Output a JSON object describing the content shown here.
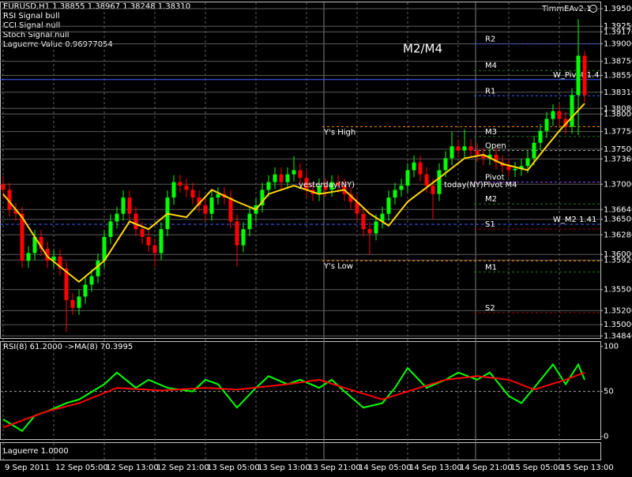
{
  "header": {
    "symbol_line": "EURUSD,H1  1.38855 1.38967 1.38248 1.38310",
    "lines": [
      "RSI Signal bull",
      "CCI Signal null",
      "Stoch Signal null",
      "Laguerre Value 0.96977054"
    ],
    "expert": "TimmEAv2.1"
  },
  "chart_data": [
    {
      "type": "candlestick",
      "categories": [
        "9 Sep 2011",
        null,
        null,
        null,
        null,
        null,
        null,
        null,
        "12 Sep 05:00",
        null,
        null,
        null,
        null,
        null,
        null,
        null,
        "12 Sep 13:00",
        null,
        null,
        null,
        null,
        null,
        null,
        null,
        "12 Sep 21:00",
        null,
        null,
        null,
        null,
        null,
        null,
        null,
        "13 Sep 05:00",
        null,
        null,
        null,
        null,
        null,
        null,
        null,
        "13 Sep 13:00",
        null,
        null,
        null,
        null,
        null,
        null,
        null,
        "13 Sep 21:00",
        null,
        null,
        null,
        null,
        null,
        null,
        null,
        "14 Sep 05:00",
        null,
        null,
        null,
        null,
        null,
        null,
        null,
        "14 Sep 13:00",
        null,
        null,
        null,
        null,
        null,
        null,
        null,
        "14 Sep 21:00",
        null,
        null,
        null,
        null,
        null,
        null,
        null,
        "15 Sep 05:00",
        null,
        null,
        null,
        null,
        null,
        null,
        null,
        "15 Sep 13:00",
        null,
        null,
        null,
        null
      ],
      "open": [
        1.37,
        1.3692,
        1.3664,
        1.3658,
        1.3591,
        1.3602,
        1.3625,
        1.3608,
        1.3591,
        1.3597,
        1.358,
        1.3535,
        1.3524,
        1.354,
        1.3557,
        1.3569,
        1.3591,
        1.3625,
        1.3647,
        1.3658,
        1.3681,
        1.3658,
        1.3636,
        1.3625,
        1.3613,
        1.3602,
        1.3636,
        1.3681,
        1.3703,
        1.3698,
        1.3692,
        1.3681,
        1.367,
        1.3658,
        1.3681,
        1.3686,
        1.3681,
        1.3647,
        1.3613,
        1.3636,
        1.3658,
        1.367,
        1.3692,
        1.3703,
        1.3714,
        1.3703,
        1.3714,
        1.372,
        1.3709,
        1.3692,
        1.3686,
        1.3698,
        1.3692,
        1.3703,
        1.3698,
        1.3686,
        1.3675,
        1.3658,
        1.3636,
        1.363,
        1.3647,
        1.3658,
        1.3681,
        1.3692,
        1.3698,
        1.372,
        1.3731,
        1.3714,
        1.3698,
        1.3686,
        1.372,
        1.3737,
        1.3754,
        1.3748,
        1.3754,
        1.3748,
        1.3742,
        1.3737,
        1.3742,
        1.3731,
        1.3726,
        1.372,
        1.3722,
        1.3726,
        1.3737,
        1.3759,
        1.3776,
        1.3793,
        1.3804,
        1.3793,
        1.3782,
        1.3827,
        1.3883
      ],
      "high": [
        1.3712,
        1.3702,
        1.3674,
        1.3668,
        1.3612,
        1.3635,
        1.3635,
        1.3618,
        1.3607,
        1.3607,
        1.359,
        1.3545,
        1.355,
        1.3567,
        1.3579,
        1.3601,
        1.3635,
        1.3657,
        1.3668,
        1.3691,
        1.3691,
        1.3668,
        1.3646,
        1.3635,
        1.3623,
        1.3646,
        1.3691,
        1.3713,
        1.3713,
        1.3708,
        1.3702,
        1.3691,
        1.368,
        1.3691,
        1.3696,
        1.3696,
        1.3691,
        1.3657,
        1.3646,
        1.3668,
        1.368,
        1.3702,
        1.3713,
        1.3724,
        1.3724,
        1.3724,
        1.374,
        1.373,
        1.3719,
        1.3702,
        1.3708,
        1.3708,
        1.3713,
        1.3713,
        1.3708,
        1.3696,
        1.3685,
        1.3668,
        1.3646,
        1.3657,
        1.3668,
        1.3691,
        1.3702,
        1.3708,
        1.373,
        1.3741,
        1.3741,
        1.3724,
        1.3708,
        1.373,
        1.3747,
        1.3775,
        1.3764,
        1.3778,
        1.3764,
        1.3758,
        1.3752,
        1.3752,
        1.3752,
        1.3741,
        1.3736,
        1.3732,
        1.3736,
        1.3747,
        1.3769,
        1.3786,
        1.3803,
        1.3814,
        1.3814,
        1.3803,
        1.3837,
        1.3935,
        1.389
      ],
      "low": [
        1.368,
        1.3654,
        1.3648,
        1.3581,
        1.3581,
        1.3592,
        1.3598,
        1.3581,
        1.3581,
        1.357,
        1.349,
        1.3514,
        1.3514,
        1.353,
        1.3547,
        1.3559,
        1.3581,
        1.3615,
        1.3637,
        1.3648,
        1.3648,
        1.3626,
        1.3615,
        1.3603,
        1.3582,
        1.3592,
        1.3626,
        1.3671,
        1.3688,
        1.3682,
        1.3671,
        1.366,
        1.3648,
        1.3648,
        1.3671,
        1.3671,
        1.3637,
        1.3583,
        1.3603,
        1.3626,
        1.3648,
        1.366,
        1.3682,
        1.3693,
        1.3693,
        1.3693,
        1.3704,
        1.3699,
        1.3682,
        1.3676,
        1.3676,
        1.3682,
        1.3682,
        1.3688,
        1.3676,
        1.3665,
        1.3648,
        1.3626,
        1.36,
        1.362,
        1.3637,
        1.3648,
        1.3671,
        1.3682,
        1.3688,
        1.371,
        1.3704,
        1.3688,
        1.365,
        1.3676,
        1.371,
        1.3727,
        1.3738,
        1.3738,
        1.3738,
        1.3732,
        1.3727,
        1.3727,
        1.3721,
        1.3716,
        1.371,
        1.371,
        1.3712,
        1.3716,
        1.3727,
        1.3749,
        1.3766,
        1.3783,
        1.3783,
        1.3772,
        1.3772,
        1.377,
        1.3817
      ],
      "close": [
        1.3692,
        1.3664,
        1.3658,
        1.3591,
        1.3602,
        1.3625,
        1.3608,
        1.3591,
        1.3597,
        1.358,
        1.3535,
        1.3524,
        1.354,
        1.3557,
        1.3569,
        1.3591,
        1.3625,
        1.3647,
        1.3658,
        1.3681,
        1.3658,
        1.3636,
        1.3625,
        1.3613,
        1.3602,
        1.3636,
        1.3681,
        1.3703,
        1.3698,
        1.3692,
        1.3681,
        1.367,
        1.3658,
        1.3681,
        1.3686,
        1.3681,
        1.3647,
        1.3613,
        1.3636,
        1.3658,
        1.367,
        1.3692,
        1.3703,
        1.3714,
        1.3703,
        1.3714,
        1.372,
        1.3709,
        1.3692,
        1.3686,
        1.3698,
        1.3692,
        1.3703,
        1.3698,
        1.3686,
        1.3675,
        1.3658,
        1.3636,
        1.363,
        1.3647,
        1.3658,
        1.3681,
        1.3692,
        1.3698,
        1.372,
        1.3731,
        1.3714,
        1.3698,
        1.3686,
        1.372,
        1.3737,
        1.3754,
        1.3748,
        1.3754,
        1.3748,
        1.3742,
        1.3737,
        1.3742,
        1.3731,
        1.3726,
        1.372,
        1.3722,
        1.3726,
        1.3737,
        1.3759,
        1.3776,
        1.3793,
        1.3804,
        1.3793,
        1.3782,
        1.3827,
        1.3883,
        1.3827
      ],
      "up_color": "#00ff00",
      "down_color": "#ff0000",
      "overlay": {
        "color": "#ffd700",
        "x": [
          0,
          3,
          7,
          12,
          16,
          20,
          23,
          26,
          29,
          33,
          37,
          40,
          42,
          46,
          50,
          54,
          58,
          61,
          64,
          69,
          73,
          76,
          79,
          83,
          86,
          88,
          92
        ],
        "values": [
          1.3686,
          1.3653,
          1.3597,
          1.3561,
          1.3591,
          1.3647,
          1.3636,
          1.3658,
          1.3653,
          1.3692,
          1.3675,
          1.3664,
          1.3686,
          1.3698,
          1.3686,
          1.3692,
          1.3658,
          1.3641,
          1.3675,
          1.3709,
          1.3737,
          1.3742,
          1.3729,
          1.372,
          1.3754,
          1.3776,
          1.3815
        ]
      },
      "ylim": [
        1.3481,
        1.3959
      ],
      "yticks": [
        {
          "value": 1.395,
          "label": "1.39500"
        },
        {
          "value": 1.3925,
          "label": "1.39250"
        },
        {
          "value": 1.3917,
          "label": "1.39170"
        },
        {
          "value": 1.39,
          "label": "1.39000"
        },
        {
          "value": 1.3875,
          "label": "1.38750"
        },
        {
          "value": 1.3855,
          "label": "1.38550"
        },
        {
          "value": 1.3831,
          "label": "1.38310"
        },
        {
          "value": 1.3808,
          "label": "1.38080"
        },
        {
          "value": 1.38,
          "label": "1.38000"
        },
        {
          "value": 1.3775,
          "label": "1.37750"
        },
        {
          "value": 1.375,
          "label": "1.37500"
        },
        {
          "value": 1.3736,
          "label": "1.37360"
        },
        {
          "value": 1.37,
          "label": "1.37000"
        },
        {
          "value": 1.3664,
          "label": "1.36640"
        },
        {
          "value": 1.365,
          "label": "1.36500"
        },
        {
          "value": 1.3628,
          "label": "1.36280"
        },
        {
          "value": 1.36,
          "label": "1.36000"
        },
        {
          "value": 1.3592,
          "label": "1.35920"
        },
        {
          "value": 1.355,
          "label": "1.35500"
        },
        {
          "value": 1.352,
          "label": "1.35200"
        },
        {
          "value": 1.35,
          "label": "1.35000"
        },
        {
          "value": 1.3484,
          "label": "1.34840"
        }
      ],
      "grid": true,
      "levels": [
        {
          "label": "R2",
          "value": 1.39,
          "color": "#4060ff"
        },
        {
          "label": "M4",
          "value": 1.3862,
          "color": "#1e7a1e"
        },
        {
          "label": "W_Pivot 1.4",
          "value": 1.3849,
          "color": "#4060ff"
        },
        {
          "label": "R1",
          "value": 1.3826,
          "color": "#4060ff"
        },
        {
          "label": "Y's High",
          "value": 1.3782,
          "color": "#ff8c00"
        },
        {
          "label": "M3",
          "value": 1.3768,
          "color": "#1e7a1e"
        },
        {
          "label": "Open",
          "value": 1.3748,
          "color": "#a0a0a0"
        },
        {
          "label": "Pivot",
          "value": 1.3703,
          "color": "#a040ff"
        },
        {
          "label": "M2",
          "value": 1.3672,
          "color": "#1e7a1e"
        },
        {
          "label": "W_M2 1.41",
          "value": 1.3643,
          "color": "#4060ff"
        },
        {
          "label": "S1",
          "value": 1.3636,
          "color": "#a00000"
        },
        {
          "label": "Y's Low",
          "value": 1.3591,
          "color": "#ff8c00"
        },
        {
          "label": "M1",
          "value": 1.3575,
          "color": "#1e7a1e"
        },
        {
          "label": "S2",
          "value": 1.3517,
          "color": "#a00000"
        }
      ],
      "annotations": [
        "M2/M4",
        "yesterday(NY)",
        "today(NY)Pivot M4"
      ]
    },
    {
      "type": "line",
      "title": "RSI(8) 61.2000  ->MA(8) 70.3995",
      "series": [
        {
          "color": "#00ff00",
          "x": [
            0,
            3,
            5,
            7,
            10,
            12,
            16,
            18,
            21,
            23,
            26,
            30,
            32,
            34,
            37,
            40,
            42,
            45,
            47,
            50,
            52,
            54,
            57,
            60,
            62,
            64,
            67,
            70,
            72,
            75,
            77,
            80,
            82,
            84,
            87,
            89,
            91,
            92
          ],
          "values": [
            19,
            6,
            23,
            28,
            37,
            41,
            58,
            71,
            54,
            63,
            54,
            50,
            63,
            58,
            32,
            54,
            67,
            58,
            63,
            54,
            63,
            50,
            32,
            37,
            54,
            76,
            54,
            63,
            71,
            63,
            71,
            45,
            37,
            54,
            80,
            58,
            80,
            63
          ]
        },
        {
          "color": "#ff0000",
          "x": [
            0,
            7,
            12,
            18,
            25,
            32,
            37,
            45,
            50,
            54,
            60,
            64,
            70,
            75,
            80,
            84,
            89,
            92
          ],
          "values": [
            10,
            28,
            37,
            54,
            51,
            54,
            52,
            58,
            63,
            54,
            41,
            50,
            63,
            67,
            63,
            52,
            63,
            71
          ]
        }
      ],
      "ylim": [
        -3,
        105
      ],
      "yticks": [
        0,
        50,
        100
      ]
    },
    {
      "type": "indicator",
      "title": "Laguerre 1.0000"
    }
  ]
}
